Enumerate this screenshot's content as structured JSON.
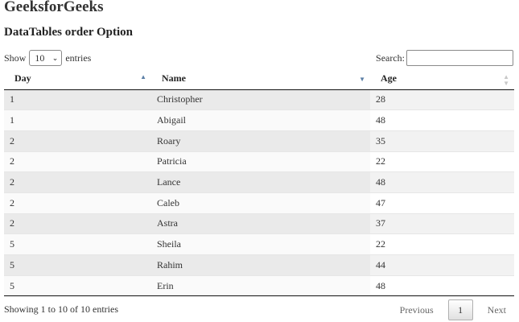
{
  "header": {
    "brand": "GeeksforGeeks",
    "subtitle": "DataTables order Option"
  },
  "controls": {
    "show_label": "Show",
    "page_length": "10",
    "entries_label": "entries",
    "search_label": "Search:",
    "search_value": ""
  },
  "table": {
    "columns": [
      {
        "label": "Day",
        "sort": "ascending",
        "sort_icon": "triangle-up-icon"
      },
      {
        "label": "Name",
        "sort": "descending",
        "sort_icon": "triangle-down-icon"
      },
      {
        "label": "Age",
        "sort": "none",
        "sort_icon": "sort-both-icon"
      }
    ],
    "rows": [
      {
        "day": "1",
        "name": "Christopher",
        "age": "28"
      },
      {
        "day": "1",
        "name": "Abigail",
        "age": "48"
      },
      {
        "day": "2",
        "name": "Roary",
        "age": "35"
      },
      {
        "day": "2",
        "name": "Patricia",
        "age": "22"
      },
      {
        "day": "2",
        "name": "Lance",
        "age": "48"
      },
      {
        "day": "2",
        "name": "Caleb",
        "age": "47"
      },
      {
        "day": "2",
        "name": "Astra",
        "age": "37"
      },
      {
        "day": "5",
        "name": "Sheila",
        "age": "22"
      },
      {
        "day": "5",
        "name": "Rahim",
        "age": "44"
      },
      {
        "day": "5",
        "name": "Erin",
        "age": "48"
      }
    ]
  },
  "footer": {
    "info": "Showing 1 to 10 of 10 entries",
    "previous_label": "Previous",
    "current_page": "1",
    "next_label": "Next"
  },
  "colors": {
    "sort_arrow_active": "#5b7fa6",
    "sort_arrow_inactive": "#c8c8c8",
    "stripe": "#f2f2f2"
  }
}
